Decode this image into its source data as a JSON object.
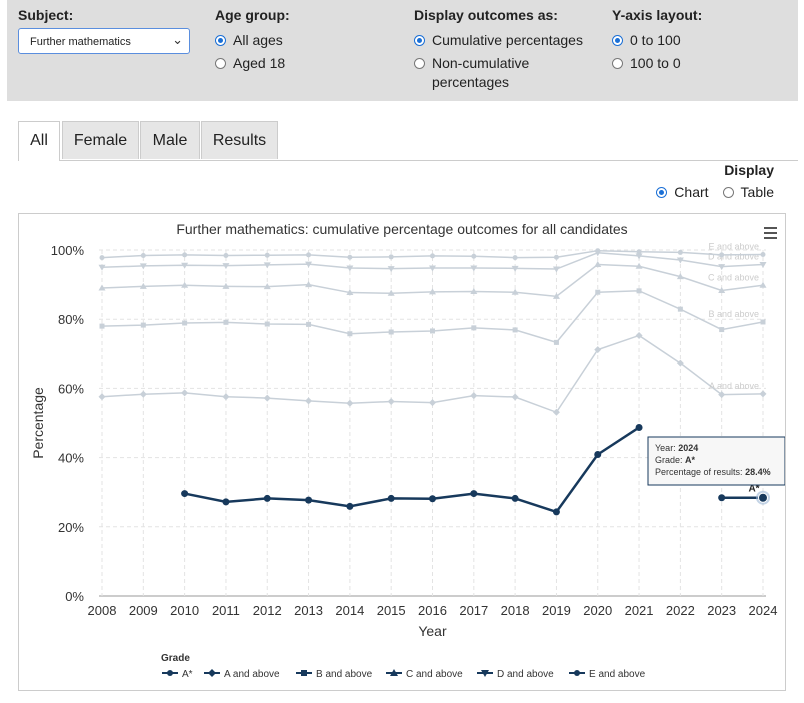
{
  "filters": {
    "subject": {
      "title": "Subject:",
      "value": "Further mathematics"
    },
    "age": {
      "title": "Age group:",
      "options": [
        "All ages",
        "Aged 18"
      ],
      "selected": 0
    },
    "outcomes": {
      "title": "Display outcomes as:",
      "options": [
        "Cumulative percentages",
        "Non-cumulative",
        "percentages"
      ],
      "selected": 0
    },
    "yaxis": {
      "title": "Y-axis layout:",
      "options": [
        "0 to 100",
        "100 to 0"
      ],
      "selected": 0
    }
  },
  "tabs": [
    "All",
    "Female",
    "Male",
    "Results"
  ],
  "active_tab": "All",
  "display": {
    "title": "Display",
    "options": [
      "Chart",
      "Table"
    ],
    "selected": "Chart"
  },
  "tooltip": {
    "year_label": "Year:",
    "year": "2024",
    "grade_label": "Grade:",
    "grade": "A*",
    "pct_label": "Percentage of results:",
    "pct": "28.4%"
  },
  "colors": {
    "highlight": "#17395c",
    "faded": "#c8d0d8"
  },
  "chart_data": {
    "type": "line",
    "title": "Further mathematics: cumulative percentage outcomes for all candidates",
    "xlabel": "Year",
    "ylabel": "Percentage",
    "ylim": [
      0,
      100
    ],
    "yticks": [
      "0%",
      "20%",
      "40%",
      "60%",
      "80%",
      "100%"
    ],
    "x": [
      "2008",
      "2009",
      "2010",
      "2011",
      "2012",
      "2013",
      "2014",
      "2015",
      "2016",
      "2017",
      "2018",
      "2019",
      "2020",
      "2021",
      "2022",
      "2023",
      "2024"
    ],
    "legend_title": "Grade",
    "highlight_series": "A*",
    "series": [
      {
        "name": "A*",
        "marker": "circle",
        "values": [
          null,
          null,
          29.6,
          27.2,
          28.2,
          27.7,
          25.9,
          28.2,
          28.1,
          29.6,
          28.2,
          24.3,
          40.9,
          48.7,
          null,
          28.4,
          28.4
        ]
      },
      {
        "name": "A and above",
        "marker": "diamond",
        "label": "A and above",
        "values": [
          57.6,
          58.3,
          58.7,
          57.6,
          57.2,
          56.4,
          55.7,
          56.2,
          55.9,
          57.9,
          57.5,
          53.1,
          71.2,
          75.3,
          67.3,
          58.2,
          58.4
        ]
      },
      {
        "name": "B and above",
        "marker": "square",
        "label": "B and above",
        "values": [
          78.0,
          78.3,
          78.9,
          79.1,
          78.6,
          78.5,
          75.8,
          76.3,
          76.6,
          77.5,
          76.9,
          73.3,
          87.8,
          88.2,
          82.9,
          77.0,
          79.2
        ]
      },
      {
        "name": "C and above",
        "marker": "triangle",
        "label": "C and above",
        "values": [
          89.0,
          89.5,
          89.8,
          89.5,
          89.4,
          90.0,
          87.7,
          87.5,
          87.9,
          88.0,
          87.8,
          86.6,
          95.8,
          95.3,
          92.3,
          88.3,
          89.8
        ]
      },
      {
        "name": "D and above",
        "marker": "triangle-down",
        "label": "D and above",
        "values": [
          95.0,
          95.4,
          95.6,
          95.5,
          95.7,
          95.9,
          94.8,
          94.6,
          94.8,
          94.8,
          94.7,
          94.5,
          99.2,
          98.3,
          97.1,
          95.2,
          95.8
        ]
      },
      {
        "name": "E and above",
        "marker": "circle",
        "label": "E and above",
        "values": [
          97.8,
          98.4,
          98.6,
          98.4,
          98.5,
          98.6,
          97.9,
          98.0,
          98.3,
          98.2,
          97.8,
          97.9,
          99.8,
          99.5,
          99.3,
          98.6,
          98.7
        ]
      }
    ],
    "annotations": {
      "point_label": "A*"
    }
  }
}
